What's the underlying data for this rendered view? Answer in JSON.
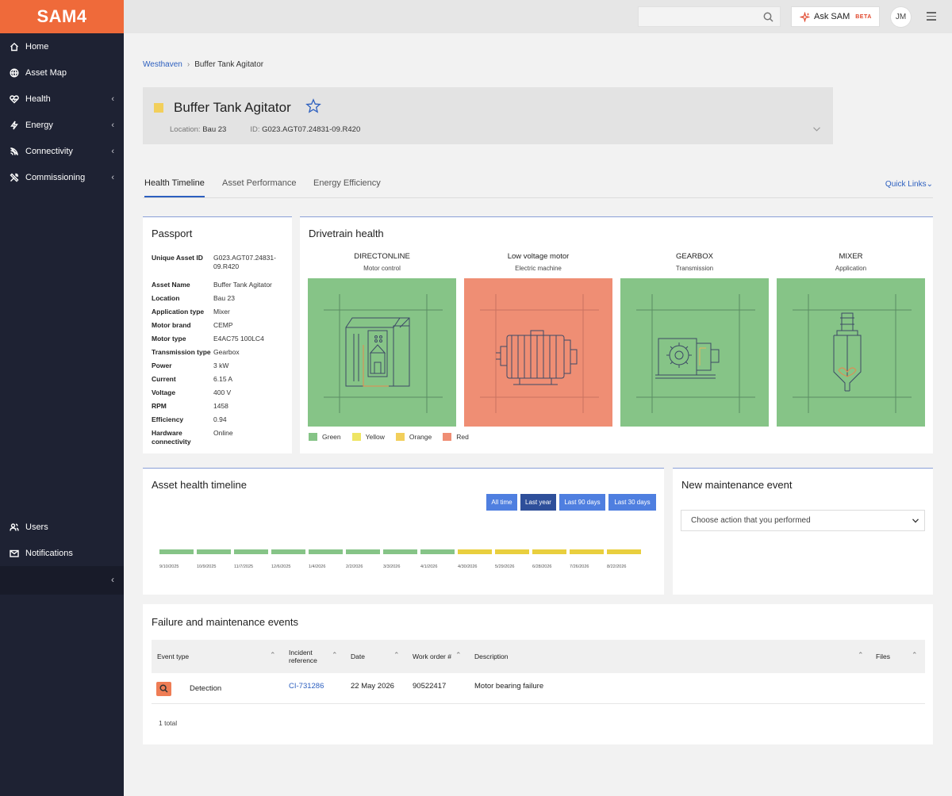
{
  "app": {
    "logo": "SAM4"
  },
  "sidebar": {
    "items": [
      {
        "label": "Home",
        "icon": "home-icon"
      },
      {
        "label": "Asset Map",
        "icon": "globe-icon"
      },
      {
        "label": "Health",
        "icon": "heart-icon"
      },
      {
        "label": "Energy",
        "icon": "bolt-icon"
      },
      {
        "label": "Connectivity",
        "icon": "signal-icon"
      },
      {
        "label": "Commissioning",
        "icon": "tools-icon"
      }
    ],
    "bottom_items": [
      {
        "label": "Users",
        "icon": "users-icon"
      },
      {
        "label": "Notifications",
        "icon": "mail-icon"
      }
    ]
  },
  "topbar": {
    "search_placeholder": "",
    "ask_label": "Ask SAM",
    "beta_label": "BETA",
    "avatar_initials": "JM"
  },
  "breadcrumb": {
    "parent": "Westhaven",
    "current": "Buffer Tank Agitator"
  },
  "asset": {
    "title": "Buffer Tank Agitator",
    "location_label": "Location:",
    "location_value": "Bau 23",
    "id_label": "ID:",
    "id_value": "G023.AGT07.24831-09.R420",
    "status_color": "#f2cf5b"
  },
  "tabs": [
    {
      "label": "Health Timeline",
      "active": true
    },
    {
      "label": "Asset Performance",
      "active": false
    },
    {
      "label": "Energy Efficiency",
      "active": false
    }
  ],
  "quick_links": "Quick Links",
  "passport": {
    "title": "Passport",
    "rows": [
      {
        "label": "Unique Asset ID",
        "value": "G023.AGT07.24831-09.R420"
      },
      {
        "label": "Asset Name",
        "value": "Buffer Tank Agitator"
      },
      {
        "label": "Location",
        "value": "Bau 23"
      },
      {
        "label": "Application type",
        "value": "Mixer"
      },
      {
        "label": "Motor brand",
        "value": "CEMP"
      },
      {
        "label": "Motor type",
        "value": "E4AC75 100LC4"
      },
      {
        "label": "Transmission type",
        "value": "Gearbox"
      },
      {
        "label": "Power",
        "value": "3 kW"
      },
      {
        "label": "Current",
        "value": "6.15 A"
      },
      {
        "label": "Voltage",
        "value": "400 V"
      },
      {
        "label": "RPM",
        "value": "1458"
      },
      {
        "label": "Efficiency",
        "value": "0.94"
      },
      {
        "label": "Hardware connectivity",
        "value": "Online"
      }
    ]
  },
  "drivetrain": {
    "title": "Drivetrain health",
    "components": [
      {
        "name": "DIRECTONLINE",
        "sub": "Motor control",
        "status": "green"
      },
      {
        "name": "Low voltage motor",
        "sub": "Electric machine",
        "status": "red"
      },
      {
        "name": "GEARBOX",
        "sub": "Transmission",
        "status": "green"
      },
      {
        "name": "MIXER",
        "sub": "Application",
        "status": "green"
      }
    ],
    "legend": [
      {
        "label": "Green",
        "color": "#86c487"
      },
      {
        "label": "Yellow",
        "color": "#eee563"
      },
      {
        "label": "Orange",
        "color": "#f2cf5b"
      },
      {
        "label": "Red",
        "color": "#ef8e74"
      }
    ]
  },
  "timeline": {
    "title": "Asset health timeline",
    "ranges": [
      {
        "label": "All time",
        "active": false
      },
      {
        "label": "Last year",
        "active": true
      },
      {
        "label": "Last 90 days",
        "active": false
      },
      {
        "label": "Last 30 days",
        "active": false
      }
    ],
    "segments": [
      {
        "date": "9/10/2025",
        "status": "green"
      },
      {
        "date": "10/9/2025",
        "status": "green"
      },
      {
        "date": "11/7/2025",
        "status": "green"
      },
      {
        "date": "12/6/2025",
        "status": "green"
      },
      {
        "date": "1/4/2026",
        "status": "green"
      },
      {
        "date": "2/2/2026",
        "status": "green"
      },
      {
        "date": "3/3/2026",
        "status": "green"
      },
      {
        "date": "4/1/2026",
        "status": "green"
      },
      {
        "date": "4/30/2026",
        "status": "yellow"
      },
      {
        "date": "5/29/2026",
        "status": "yellow"
      },
      {
        "date": "6/28/2026",
        "status": "yellow"
      },
      {
        "date": "7/26/2026",
        "status": "yellow"
      },
      {
        "date": "8/22/2026",
        "status": "yellow"
      }
    ]
  },
  "maintenance": {
    "title": "New maintenance event",
    "select_placeholder": "Choose action that you performed"
  },
  "events": {
    "title": "Failure and maintenance events",
    "columns": [
      "Event type",
      "Incident reference",
      "Date",
      "Work order #",
      "Description",
      "Files"
    ],
    "rows": [
      {
        "type": "Detection",
        "reference": "CI-731286",
        "date": "22 May 2026",
        "work_order": "90522417",
        "description": "Motor bearing failure",
        "files": ""
      }
    ],
    "total": "1 total"
  },
  "colors": {
    "accent": "#ef6a3a",
    "link": "#2c5fbf",
    "green": "#86c487",
    "red": "#ef8e74",
    "yellow": "#e9cf3e"
  }
}
